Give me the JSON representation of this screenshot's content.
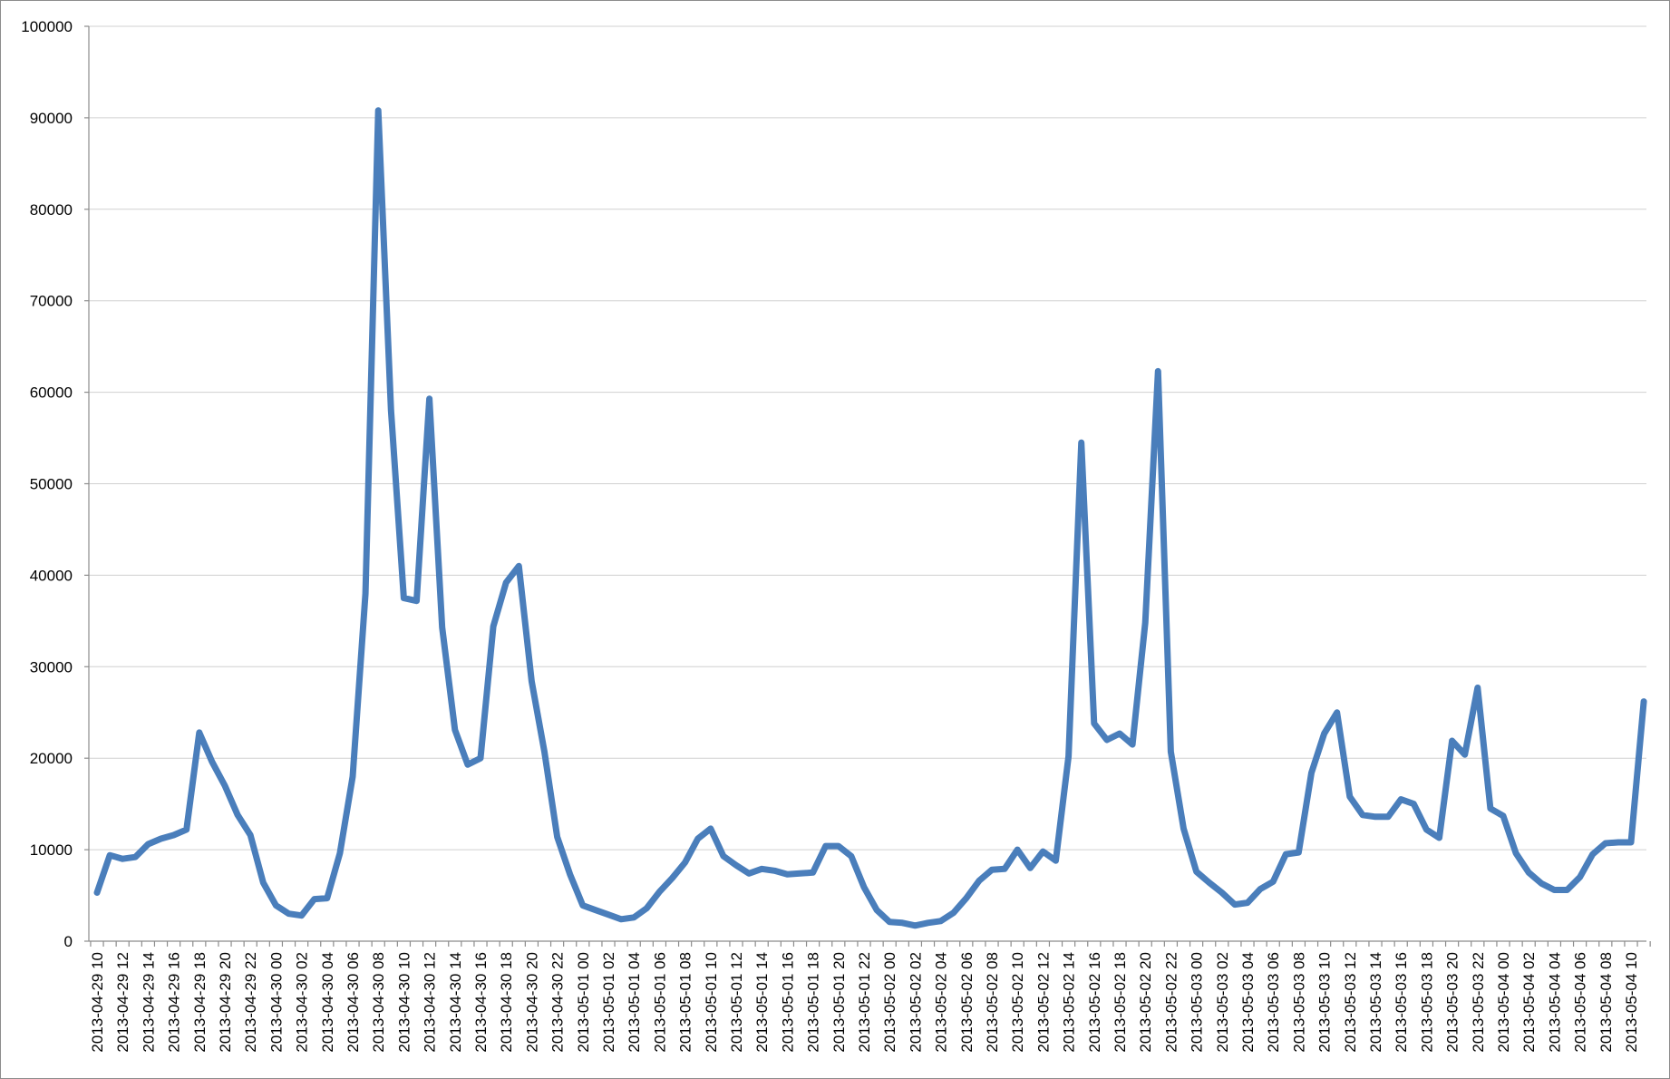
{
  "chart_data": {
    "type": "line",
    "title": "",
    "xlabel": "",
    "ylabel": "",
    "ylim": [
      0,
      100000
    ],
    "yticks": [
      0,
      10000,
      20000,
      30000,
      40000,
      50000,
      60000,
      70000,
      80000,
      90000,
      100000
    ],
    "grid": true,
    "legend": "none",
    "line_color": "#4a7ebb",
    "x": [
      "2013-04-29 10",
      "2013-04-29 11",
      "2013-04-29 12",
      "2013-04-29 13",
      "2013-04-29 14",
      "2013-04-29 15",
      "2013-04-29 16",
      "2013-04-29 17",
      "2013-04-29 18",
      "2013-04-29 19",
      "2013-04-29 20",
      "2013-04-29 21",
      "2013-04-29 22",
      "2013-04-29 23",
      "2013-04-30 00",
      "2013-04-30 01",
      "2013-04-30 02",
      "2013-04-30 03",
      "2013-04-30 04",
      "2013-04-30 05",
      "2013-04-30 06",
      "2013-04-30 07",
      "2013-04-30 08",
      "2013-04-30 09",
      "2013-04-30 10",
      "2013-04-30 11",
      "2013-04-30 12",
      "2013-04-30 13",
      "2013-04-30 14",
      "2013-04-30 15",
      "2013-04-30 16",
      "2013-04-30 17",
      "2013-04-30 18",
      "2013-04-30 19",
      "2013-04-30 20",
      "2013-04-30 21",
      "2013-04-30 22",
      "2013-04-30 23",
      "2013-05-01 00",
      "2013-05-01 01",
      "2013-05-01 02",
      "2013-05-01 03",
      "2013-05-01 04",
      "2013-05-01 05",
      "2013-05-01 06",
      "2013-05-01 07",
      "2013-05-01 08",
      "2013-05-01 09",
      "2013-05-01 10",
      "2013-05-01 11",
      "2013-05-01 12",
      "2013-05-01 13",
      "2013-05-01 14",
      "2013-05-01 15",
      "2013-05-01 16",
      "2013-05-01 17",
      "2013-05-01 18",
      "2013-05-01 19",
      "2013-05-01 20",
      "2013-05-01 21",
      "2013-05-01 22",
      "2013-05-01 23",
      "2013-05-02 00",
      "2013-05-02 01",
      "2013-05-02 02",
      "2013-05-02 03",
      "2013-05-02 04",
      "2013-05-02 05",
      "2013-05-02 06",
      "2013-05-02 07",
      "2013-05-02 08",
      "2013-05-02 09",
      "2013-05-02 10",
      "2013-05-02 11",
      "2013-05-02 12",
      "2013-05-02 13",
      "2013-05-02 14",
      "2013-05-02 15",
      "2013-05-02 16",
      "2013-05-02 17",
      "2013-05-02 18",
      "2013-05-02 19",
      "2013-05-02 20",
      "2013-05-02 21",
      "2013-05-02 22",
      "2013-05-02 23",
      "2013-05-03 00",
      "2013-05-03 01",
      "2013-05-03 02",
      "2013-05-03 03",
      "2013-05-03 04",
      "2013-05-03 05",
      "2013-05-03 06",
      "2013-05-03 07",
      "2013-05-03 08",
      "2013-05-03 09",
      "2013-05-03 10",
      "2013-05-03 11",
      "2013-05-03 12",
      "2013-05-03 13",
      "2013-05-03 14",
      "2013-05-03 15",
      "2013-05-03 16",
      "2013-05-03 17",
      "2013-05-03 18",
      "2013-05-03 19",
      "2013-05-03 20",
      "2013-05-03 21",
      "2013-05-03 22",
      "2013-05-03 23",
      "2013-05-04 00",
      "2013-05-04 01",
      "2013-05-04 02",
      "2013-05-04 03",
      "2013-05-04 04",
      "2013-05-04 05",
      "2013-05-04 06",
      "2013-05-04 07",
      "2013-05-04 08",
      "2013-05-04 09",
      "2013-05-04 10",
      "2013-05-04 11"
    ],
    "xtick_labels_shown_every": 2,
    "series": [
      {
        "values": [
          5300,
          9400,
          9000,
          9200,
          10600,
          11200,
          11600,
          12200,
          22800,
          19600,
          17000,
          13800,
          11600,
          6400,
          3900,
          3000,
          2800,
          4600,
          4700,
          9600,
          18000,
          38000,
          90800,
          58000,
          37500,
          37200,
          59300,
          34300,
          23100,
          19300,
          20000,
          34400,
          39200,
          41000,
          28400,
          20700,
          11400,
          7300,
          3900,
          3400,
          2900,
          2400,
          2600,
          3600,
          5400,
          6900,
          8600,
          11200,
          12300,
          9300,
          8300,
          7400,
          7900,
          7700,
          7300,
          7400,
          7500,
          10400,
          10400,
          9300,
          5900,
          3400,
          2100,
          2000,
          1700,
          2000,
          2200,
          3100,
          4700,
          6600,
          7800,
          7900,
          10000,
          8000,
          9800,
          8800,
          20200,
          54500,
          23800,
          22000,
          22700,
          21500,
          34800,
          62300,
          20700,
          12300,
          7600,
          6400,
          5300,
          4000,
          4200,
          5700,
          6500,
          9500,
          9700,
          18400,
          22700,
          25000,
          15800,
          13800,
          13600,
          13600,
          15500,
          15000,
          12200,
          11300,
          21900,
          20400,
          27700,
          14500,
          13700,
          9600,
          7500,
          6300,
          5600,
          5600,
          7000,
          9500,
          10700,
          10800,
          10800,
          26200
        ]
      }
    ]
  }
}
